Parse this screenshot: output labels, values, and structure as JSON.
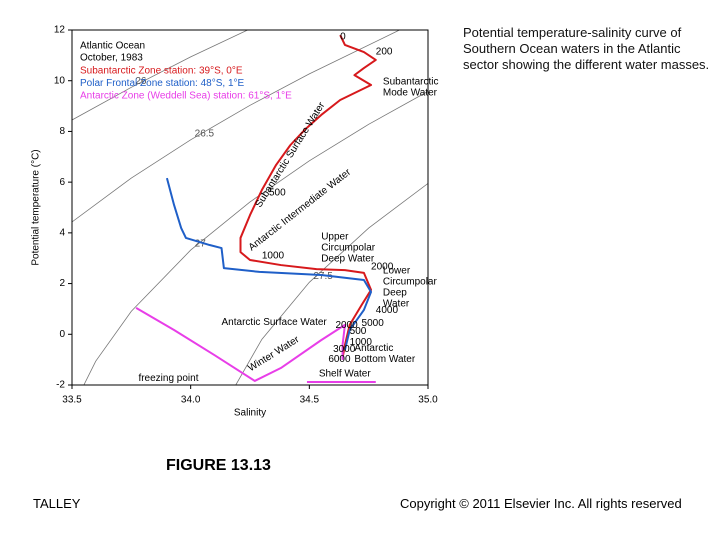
{
  "chart_data": {
    "type": "line",
    "title": "Atlantic Ocean",
    "subtitle": "October, 1983",
    "x_label": "Salinity",
    "y_label": "Potential temperature (°C)",
    "xlim": [
      33.5,
      35.0
    ],
    "ylim": [
      -2,
      12
    ],
    "xticks": [
      33.5,
      {
        "value": 34,
        "label": "34.0"
      },
      34.5,
      {
        "value": 35,
        "label": "35.0"
      }
    ],
    "yticks": [
      -2,
      0,
      2,
      4,
      6,
      8,
      10,
      12
    ],
    "legend": "top-left",
    "series": [
      {
        "name": "Subantarctic Zone station: 39°S, 0°E",
        "color": "#d7191c",
        "x": [
          34.63,
          34.65,
          34.73,
          34.78,
          34.73,
          34.69,
          34.76,
          34.63,
          34.55,
          34.48,
          34.42,
          34.36,
          34.3,
          34.25,
          34.21,
          34.21,
          34.25,
          34.38,
          34.53,
          34.65,
          34.73,
          34.76,
          34.72,
          34.67,
          34.65,
          34.64
        ],
        "y": [
          11.8,
          11.41,
          11.13,
          10.82,
          10.5,
          10.22,
          9.83,
          9.24,
          8.65,
          8.06,
          7.46,
          6.68,
          5.69,
          4.7,
          3.8,
          3.24,
          2.93,
          2.73,
          2.57,
          2.53,
          2.42,
          1.75,
          1.15,
          0.37,
          -0.42,
          -0.94
        ]
      },
      {
        "name": "Polar Frontal Zone station: 48°S, 1°E",
        "color": "#1f5fc8",
        "x": [
          33.9,
          33.93,
          33.96,
          33.98,
          34.08,
          34.13,
          34.14,
          34.29,
          34.55,
          34.73,
          34.76,
          34.73,
          34.67,
          34.65
        ],
        "y": [
          6.16,
          5.1,
          4.19,
          3.8,
          3.52,
          3.4,
          2.61,
          2.46,
          2.34,
          2.14,
          1.67,
          0.96,
          0.17,
          -0.62
        ]
      },
      {
        "name": "Antarctic Zone (Weddell Sea) station: 61°S, 1°E",
        "color": "#e83ee8",
        "x": [
          33.77,
          33.93,
          34.1,
          34.27,
          34.38,
          34.55,
          34.65,
          34.64,
          34.64,
          null,
          34.49,
          34.78
        ],
        "y": [
          1.04,
          0.17,
          -0.82,
          -1.84,
          -1.33,
          -0.23,
          0.37,
          -0.42,
          -1.01,
          null,
          -1.88,
          -1.88
        ]
      }
    ],
    "isopycnals": [
      {
        "label": "26",
        "x": [
          33.5,
          33.75,
          34.0,
          34.24
        ],
        "y": [
          8.45,
          9.74,
          10.94,
          12
        ]
      },
      {
        "label": "26.5",
        "x": [
          33.5,
          33.75,
          34.0,
          34.25,
          34.5,
          34.88
        ],
        "y": [
          4.43,
          6.16,
          7.67,
          9.03,
          10.27,
          12
        ]
      },
      {
        "label": "27",
        "x": [
          33.55,
          33.6,
          33.75,
          34.0,
          34.25,
          34.5,
          34.75,
          35.0
        ],
        "y": [
          -2,
          -1.06,
          0.91,
          3.32,
          5.22,
          6.84,
          8.28,
          9.58
        ]
      },
      {
        "label": "27.5",
        "x": [
          34.19,
          34.3,
          34.5,
          34.75,
          35.0
        ],
        "y": [
          -2,
          -0.2,
          2.05,
          4.19,
          5.95
        ]
      }
    ],
    "annotations": [
      {
        "lines": [
          "0"
        ],
        "x": 34.63,
        "y": 11.72
      },
      {
        "lines": [
          "200"
        ],
        "x": 34.78,
        "y": 11.13
      },
      {
        "lines": [
          "Subantarctic",
          "Mode Water"
        ],
        "x": 34.81,
        "y": 9.95
      },
      {
        "lines": [
          "Subantarctic Surface Water"
        ],
        "x": 34.42,
        "y": 7.07
      },
      {
        "lines": [
          "500"
        ],
        "x": 34.33,
        "y": 5.57
      },
      {
        "lines": [
          "Antarctic Intermediate Water"
        ],
        "x": 34.46,
        "y": 4.9
      },
      {
        "lines": [
          "Upper",
          "Circumpolar",
          "Deep Water"
        ],
        "x": 34.55,
        "y": 3.85
      },
      {
        "lines": [
          "1000"
        ],
        "x": 34.3,
        "y": 3.09
      },
      {
        "lines": [
          "2000"
        ],
        "x": 34.76,
        "y": 2.65
      },
      {
        "lines": [
          "Lower",
          "Circumpolar",
          "Deep",
          "Water"
        ],
        "x": 34.81,
        "y": 2.5
      },
      {
        "lines": [
          "4000"
        ],
        "x": 34.78,
        "y": 0.94
      },
      {
        "lines": [
          "Antarctic Surface Water"
        ],
        "x": 34.13,
        "y": 0.48
      },
      {
        "lines": [
          "2000"
        ],
        "x": 34.61,
        "y": 0.36
      },
      {
        "lines": [
          "5000"
        ],
        "x": 34.72,
        "y": 0.44
      },
      {
        "lines": [
          "500",
          "1000"
        ],
        "x": 34.67,
        "y": 0.12
      },
      {
        "lines": [
          "3000"
        ],
        "x": 34.6,
        "y": -0.6
      },
      {
        "lines": [
          "6000"
        ],
        "x": 34.58,
        "y": -0.98
      },
      {
        "lines": [
          "Antarctic",
          "Bottom Water"
        ],
        "x": 34.69,
        "y": -0.55
      },
      {
        "lines": [
          "Winter Water"
        ],
        "x": 34.35,
        "y": -0.78
      },
      {
        "lines": [
          "freezing point"
        ],
        "x": 33.78,
        "y": -1.73
      },
      {
        "lines": [
          "Shelf Water"
        ],
        "x": 34.54,
        "y": -1.57
      }
    ]
  },
  "caption": "Potential temperature-salinity curve of Southern Ocean waters in the Atlantic sector showing the different water masses.",
  "figure_label": "FIGURE 13.13",
  "author": "TALLEY",
  "copyright": "Copyright © 2011 Elsevier Inc. All rights reserved"
}
